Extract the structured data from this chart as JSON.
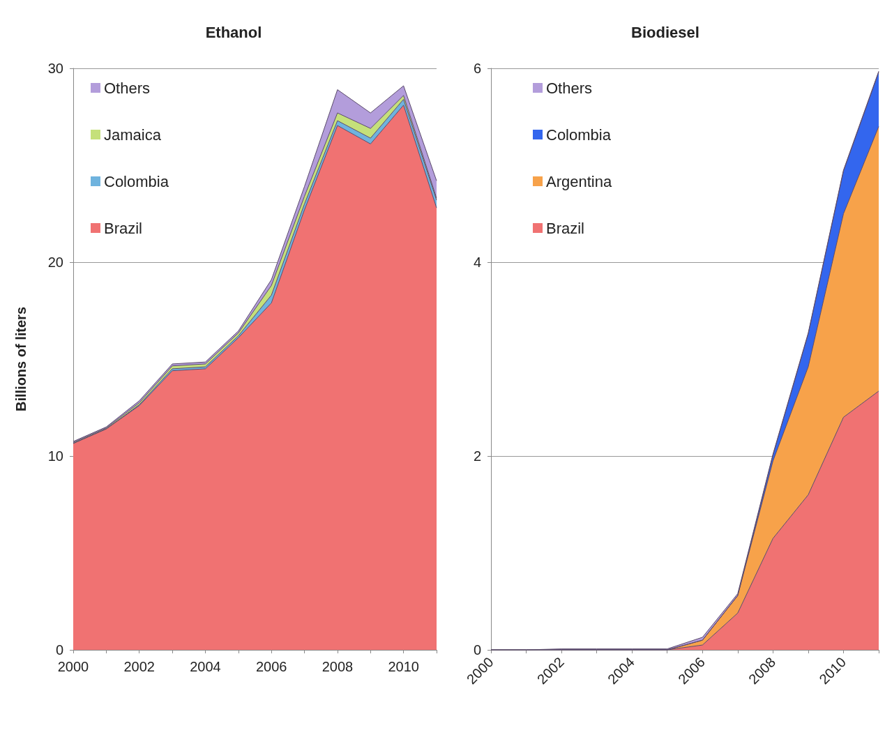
{
  "chart_data": [
    {
      "type": "area",
      "title": "Ethanol",
      "ylabel": "Billions of liters",
      "stacked": true,
      "categories": [
        "2000",
        null,
        "2002",
        null,
        "2004",
        null,
        "2006",
        null,
        "2008",
        null,
        "2010",
        null
      ],
      "ylim": [
        0,
        30
      ],
      "yticks": [
        0,
        10,
        20,
        30
      ],
      "grid": "y",
      "legend": "top left",
      "series": [
        {
          "name": "Brazil",
          "color": "#f07272",
          "values": [
            10.65,
            11.4,
            12.6,
            14.4,
            14.5,
            16.1,
            17.9,
            22.7,
            27.05,
            26.1,
            28.1,
            22.8
          ]
        },
        {
          "name": "Colombia",
          "color": "#6fb3de",
          "values": [
            0,
            0,
            0.05,
            0.1,
            0.1,
            0.1,
            0.4,
            0.3,
            0.25,
            0.3,
            0.3,
            0.4
          ]
        },
        {
          "name": "Jamaica",
          "color": "#c5e07a",
          "values": [
            0.05,
            0.05,
            0.1,
            0.15,
            0.15,
            0.15,
            0.5,
            0.4,
            0.4,
            0.5,
            0.2,
            0.1
          ]
        },
        {
          "name": "Others",
          "color": "#b39ddb",
          "values": [
            0.05,
            0.05,
            0.1,
            0.1,
            0.1,
            0.1,
            0.3,
            0.5,
            1.2,
            0.8,
            0.5,
            0.9
          ]
        }
      ]
    },
    {
      "type": "area",
      "title": "Biodiesel",
      "stacked": true,
      "categories": [
        "2000",
        null,
        "2002",
        null,
        "2004",
        null,
        "2006",
        null,
        "2008",
        null,
        "2010",
        null
      ],
      "ylim": [
        0,
        6
      ],
      "yticks": [
        0,
        2,
        4,
        6
      ],
      "grid": "y",
      "legend": "top left",
      "series": [
        {
          "name": "Brazil",
          "color": "#f07272",
          "values": [
            0,
            0,
            0,
            0,
            0,
            0,
            0.05,
            0.38,
            1.15,
            1.6,
            2.4,
            2.67
          ]
        },
        {
          "name": "Argentina",
          "color": "#f7a24a",
          "values": [
            0,
            0,
            0,
            0,
            0,
            0,
            0.05,
            0.18,
            0.8,
            1.32,
            2.1,
            2.73
          ]
        },
        {
          "name": "Colombia",
          "color": "#3366ee",
          "values": [
            0,
            0,
            0,
            0,
            0,
            0,
            0,
            0,
            0.06,
            0.34,
            0.44,
            0.56
          ]
        },
        {
          "name": "Others",
          "color": "#b39ddb",
          "values": [
            0,
            0,
            0.01,
            0.01,
            0.01,
            0.01,
            0.03,
            0.02,
            0.01,
            0.01,
            0.01,
            0.01
          ]
        }
      ]
    }
  ]
}
